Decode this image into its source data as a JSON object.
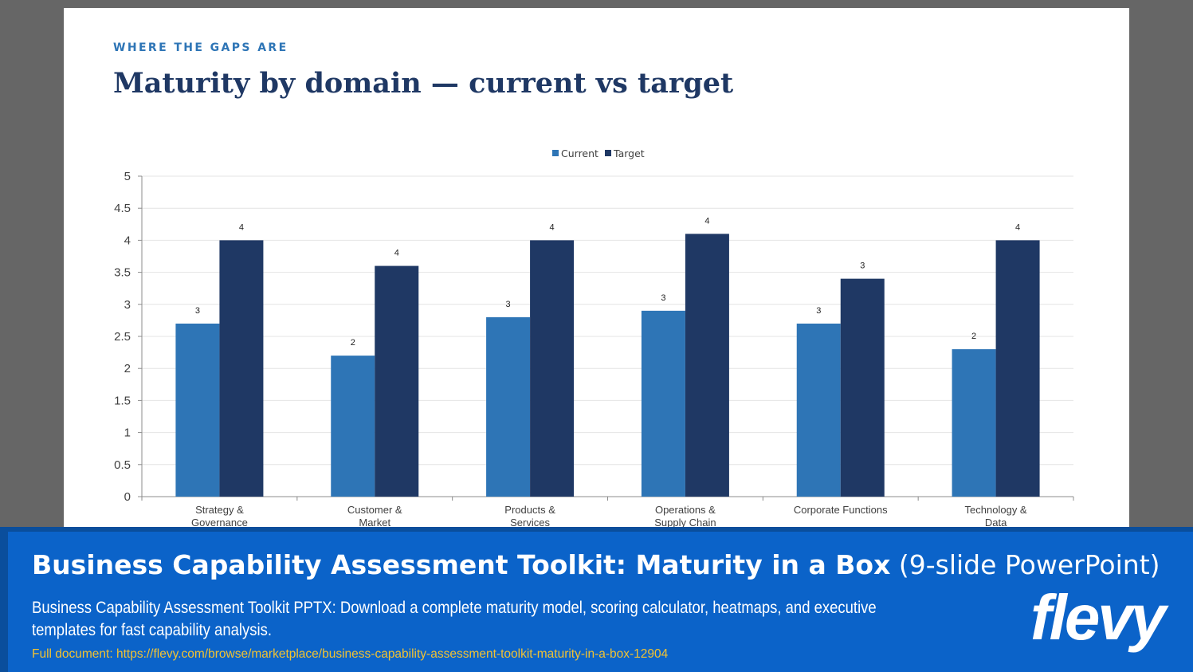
{
  "slide": {
    "eyebrow": "WHERE THE GAPS ARE",
    "title": "Maturity by domain — current vs target"
  },
  "chart_data": {
    "type": "bar",
    "title": "",
    "xlabel": "",
    "ylabel": "",
    "categories": [
      [
        "Strategy &",
        "Governance"
      ],
      [
        "Customer &",
        "Market"
      ],
      [
        "Products &",
        "Services"
      ],
      [
        "Operations &",
        "Supply Chain"
      ],
      [
        "Corporate Functions"
      ],
      [
        "Technology &",
        "Data"
      ]
    ],
    "series": [
      {
        "name": "Current",
        "color": "#2e75b6",
        "values": [
          2.7,
          2.2,
          2.8,
          2.9,
          2.7,
          2.3
        ],
        "labels": [
          "3",
          "2",
          "3",
          "3",
          "3",
          "2"
        ]
      },
      {
        "name": "Target",
        "color": "#1f3864",
        "values": [
          4.0,
          3.6,
          4.0,
          4.1,
          3.4,
          4.0
        ],
        "labels": [
          "4",
          "4",
          "4",
          "4",
          "3",
          "4"
        ]
      }
    ],
    "ylim": [
      0,
      5
    ],
    "yticks": [
      "0",
      "0.5",
      "1",
      "1.5",
      "2",
      "2.5",
      "3",
      "3.5",
      "4",
      "4.5",
      "5"
    ],
    "grid": true,
    "legend": "top-center"
  },
  "banner": {
    "title_bold": "Business Capability Assessment Toolkit: Maturity in a Box",
    "title_light": "(9-slide PowerPoint)",
    "description": "Business Capability Assessment Toolkit PPTX: Download a complete maturity model, scoring calculator, heatmaps, and executive templates for fast capability analysis.",
    "link": "Full document: https://flevy.com/browse/marketplace/business-capability-assessment-toolkit-maturity-in-a-box-12904",
    "logo": "flevy"
  }
}
